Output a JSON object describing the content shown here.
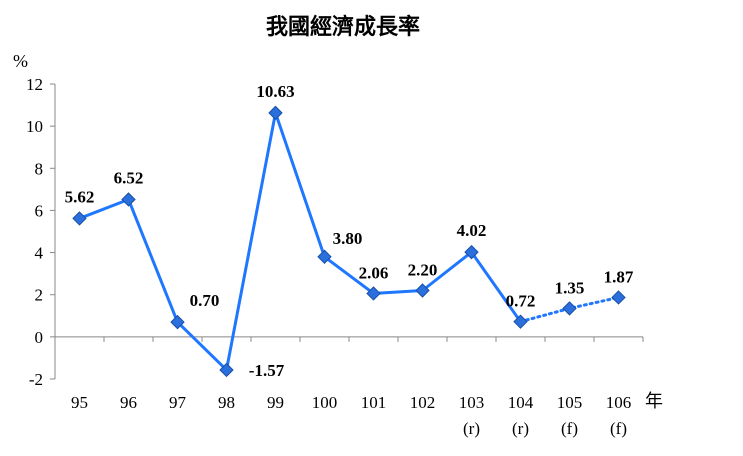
{
  "chart_data": {
    "type": "line",
    "title": "我國經濟成長率",
    "y_unit": "%",
    "x_unit": "年",
    "categories": [
      {
        "year": "95",
        "note": ""
      },
      {
        "year": "96",
        "note": ""
      },
      {
        "year": "97",
        "note": ""
      },
      {
        "year": "98",
        "note": ""
      },
      {
        "year": "99",
        "note": ""
      },
      {
        "year": "100",
        "note": ""
      },
      {
        "year": "101",
        "note": ""
      },
      {
        "year": "102",
        "note": ""
      },
      {
        "year": "103",
        "note": "(r)"
      },
      {
        "year": "104",
        "note": "(r)"
      },
      {
        "year": "105",
        "note": "(f)"
      },
      {
        "year": "106",
        "note": "(f)"
      }
    ],
    "values": [
      5.62,
      6.52,
      0.7,
      -1.57,
      10.63,
      3.8,
      2.06,
      2.2,
      4.02,
      0.72,
      1.35,
      1.87
    ],
    "data_labels": [
      "5.62",
      "6.52",
      "0.70",
      "-1.57",
      "10.63",
      "3.80",
      "2.06",
      "2.20",
      "4.02",
      "0.72",
      "1.35",
      "1.87"
    ],
    "forecast_from_index": 9,
    "ylim": [
      -2,
      12
    ],
    "yticks": [
      12,
      10,
      8,
      6,
      4,
      2,
      0,
      -2
    ],
    "line_color": "#1f77ff",
    "marker_color": "#2a6fdb",
    "grid": false,
    "legend": false
  }
}
